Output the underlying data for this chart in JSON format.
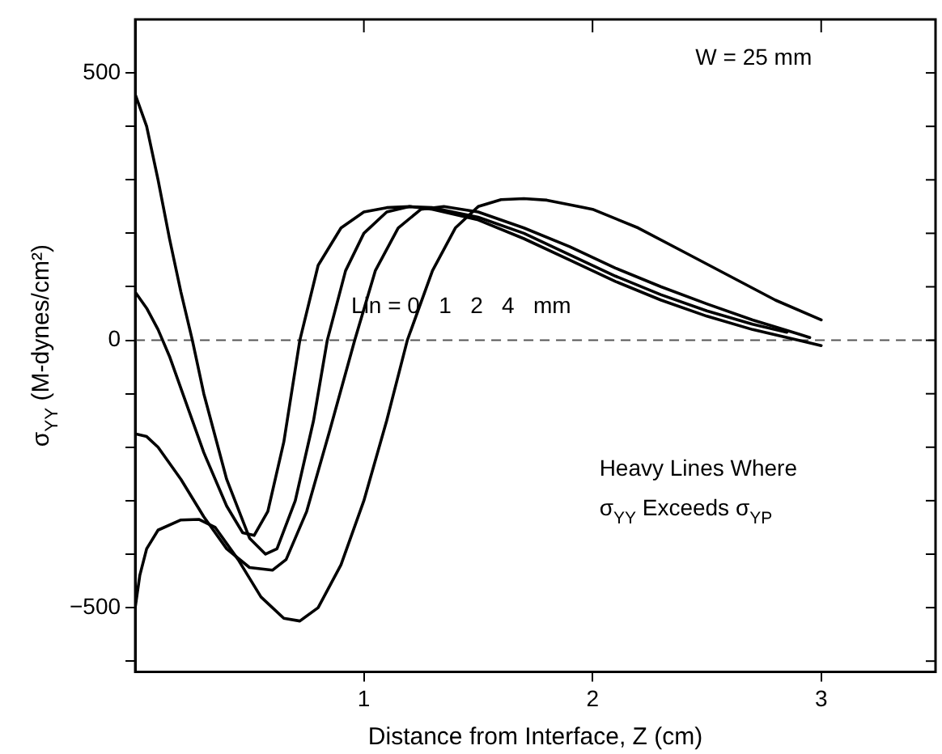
{
  "chart_data": {
    "type": "line",
    "xlabel": "Distance from Interface, Z (cm)",
    "ylabel": "σ$_{YY}$ (M-dynes/cm²)",
    "annotations": [
      "W = 25 mm",
      "Lin = 0   1   2   4   mm",
      "Heavy Lines Where",
      "σ$_{YY}$ Exceeds σ$_{YP}$"
    ],
    "xlim": [
      0,
      3.5
    ],
    "xticks": [
      1,
      2,
      3
    ],
    "ylim": [
      -620,
      600
    ],
    "yticks": [
      {
        "value": -600,
        "label": null
      },
      -500,
      {
        "value": -400,
        "label": null
      },
      {
        "value": -300,
        "label": null
      },
      {
        "value": -200,
        "label": null
      },
      {
        "value": -100,
        "label": null
      },
      0,
      {
        "value": 100,
        "label": null
      },
      {
        "value": 200,
        "label": null
      },
      {
        "value": 300,
        "label": null
      },
      {
        "value": 400,
        "label": null
      },
      500
    ],
    "grid": false,
    "legend": false,
    "marker": "none",
    "line_style": "solid",
    "ref_lines": [
      {
        "axis": "y",
        "value": 0,
        "color": "#555555",
        "line_style": "dashed"
      }
    ],
    "series": [
      {
        "color": "#000000",
        "x": [
          0,
          0.05,
          0.1,
          0.15,
          0.2,
          0.3,
          0.4,
          0.47,
          0.52,
          0.58,
          0.65,
          0.72,
          0.8,
          0.9,
          1.0,
          1.1,
          1.2,
          1.3,
          1.5,
          1.7,
          1.9,
          2.1,
          2.3,
          2.5,
          2.7,
          2.9,
          3.0
        ],
        "values": [
          90,
          60,
          20,
          -30,
          -90,
          -210,
          -310,
          -360,
          -365,
          -320,
          -190,
          0,
          140,
          210,
          240,
          248,
          250,
          245,
          225,
          190,
          150,
          110,
          75,
          45,
          20,
          0,
          -10
        ]
      },
      {
        "color": "#000000",
        "x": [
          0,
          0.05,
          0.1,
          0.15,
          0.2,
          0.25,
          0.3,
          0.4,
          0.5,
          0.57,
          0.62,
          0.7,
          0.78,
          0.84,
          0.92,
          1.0,
          1.1,
          1.2,
          1.3,
          1.5,
          1.7,
          1.9,
          2.1,
          2.3,
          2.5,
          2.7,
          2.85
        ],
        "values": [
          460,
          400,
          300,
          190,
          90,
          0,
          -100,
          -260,
          -370,
          -400,
          -390,
          -300,
          -150,
          0,
          130,
          200,
          240,
          250,
          248,
          230,
          200,
          160,
          120,
          85,
          55,
          30,
          15
        ]
      },
      {
        "color": "#000000",
        "x": [
          0,
          0.05,
          0.1,
          0.2,
          0.3,
          0.4,
          0.5,
          0.6,
          0.66,
          0.75,
          0.85,
          0.96,
          1.05,
          1.15,
          1.25,
          1.35,
          1.5,
          1.7,
          1.9,
          2.1,
          2.3,
          2.5,
          2.7,
          2.9,
          2.95
        ],
        "values": [
          -175,
          -180,
          -200,
          -260,
          -330,
          -390,
          -425,
          -430,
          -410,
          -320,
          -170,
          0,
          130,
          210,
          245,
          250,
          240,
          210,
          175,
          135,
          100,
          68,
          38,
          12,
          5
        ]
      },
      {
        "color": "#000000",
        "x": [
          0,
          0.02,
          0.05,
          0.1,
          0.2,
          0.28,
          0.35,
          0.45,
          0.55,
          0.65,
          0.72,
          0.8,
          0.9,
          1.0,
          1.1,
          1.19,
          1.3,
          1.4,
          1.5,
          1.6,
          1.7,
          1.8,
          2.0,
          2.2,
          2.4,
          2.6,
          2.8,
          3.0
        ],
        "values": [
          -500,
          -440,
          -390,
          -355,
          -336,
          -335,
          -350,
          -410,
          -480,
          -520,
          -525,
          -500,
          -420,
          -300,
          -150,
          0,
          130,
          210,
          250,
          263,
          265,
          262,
          245,
          210,
          165,
          120,
          75,
          38
        ]
      }
    ]
  }
}
